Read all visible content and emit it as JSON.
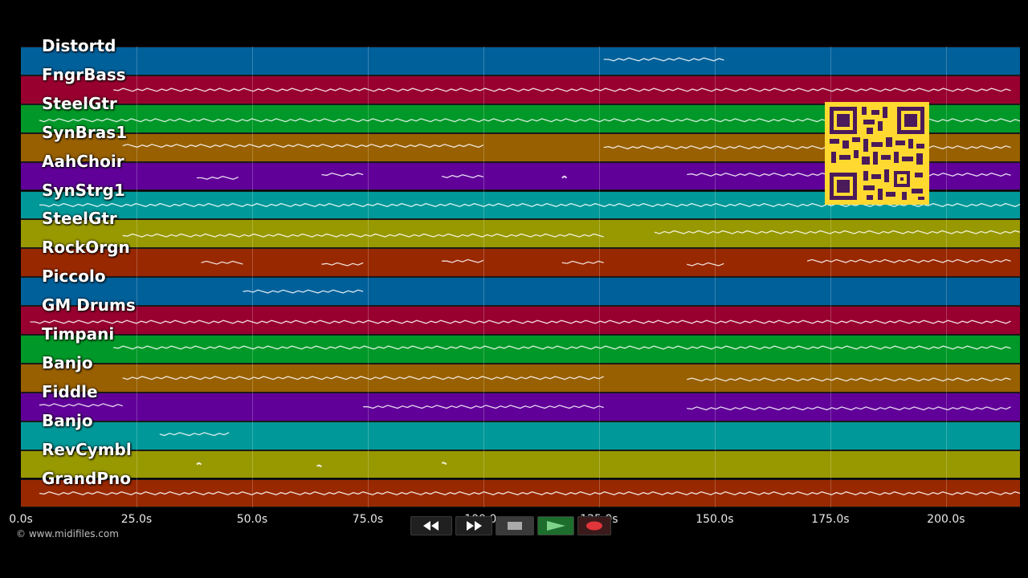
{
  "tracks": [
    {
      "name": "Distortd",
      "color": "#00609a"
    },
    {
      "name": "FngrBass",
      "color": "#980030"
    },
    {
      "name": "SteelGtr",
      "color": "#009828"
    },
    {
      "name": "SynBras1",
      "color": "#986000"
    },
    {
      "name": "AahChoir",
      "color": "#600098"
    },
    {
      "name": "SynStrg1",
      "color": "#009898"
    },
    {
      "name": "SteelGtr",
      "color": "#989800"
    },
    {
      "name": "RockOrgn",
      "color": "#982800"
    },
    {
      "name": "Piccolo",
      "color": "#00609a"
    },
    {
      "name": "GM Drums",
      "color": "#980030"
    },
    {
      "name": "Timpani",
      "color": "#009828"
    },
    {
      "name": "Banjo",
      "color": "#986000"
    },
    {
      "name": "Fiddle",
      "color": "#600098"
    },
    {
      "name": "Banjo",
      "color": "#009898"
    },
    {
      "name": "RevCymbl",
      "color": "#989800"
    },
    {
      "name": "GrandPno",
      "color": "#982800"
    }
  ],
  "timeline": {
    "ticks": [
      "0.0s",
      "25.0s",
      "50.0s",
      "75.0s",
      "100.0s",
      "125.0s",
      "150.0s",
      "175.0s",
      "200.0s"
    ],
    "tick_values": [
      0,
      25,
      50,
      75,
      100,
      125,
      150,
      175,
      200
    ],
    "max_seconds": 216
  },
  "footer": {
    "copyright": "© www.midifiles.com"
  },
  "transport": {
    "buttons": [
      {
        "name": "rewind",
        "icon": "rewind-icon"
      },
      {
        "name": "fast-forward",
        "icon": "fast-forward-icon"
      },
      {
        "name": "stop",
        "icon": "stop-icon"
      },
      {
        "name": "play",
        "icon": "play-icon"
      },
      {
        "name": "record",
        "icon": "record-icon"
      }
    ]
  },
  "notes": [
    {
      "track": 0,
      "start": 126,
      "end": 152
    },
    {
      "track": 1,
      "start": 20,
      "end": 214
    },
    {
      "track": 2,
      "start": 4,
      "end": 216
    },
    {
      "track": 3,
      "start": 22,
      "end": 100
    },
    {
      "track": 3,
      "start": 126,
      "end": 214
    },
    {
      "track": 4,
      "start": 38,
      "end": 47
    },
    {
      "track": 4,
      "start": 65,
      "end": 74
    },
    {
      "track": 4,
      "start": 91,
      "end": 100
    },
    {
      "track": 4,
      "start": 117,
      "end": 118
    },
    {
      "track": 4,
      "start": 144,
      "end": 214
    },
    {
      "track": 5,
      "start": 4,
      "end": 216
    },
    {
      "track": 6,
      "start": 22,
      "end": 126
    },
    {
      "track": 6,
      "start": 137,
      "end": 216
    },
    {
      "track": 7,
      "start": 39,
      "end": 48
    },
    {
      "track": 7,
      "start": 65,
      "end": 74
    },
    {
      "track": 7,
      "start": 91,
      "end": 100
    },
    {
      "track": 7,
      "start": 117,
      "end": 126
    },
    {
      "track": 7,
      "start": 144,
      "end": 152
    },
    {
      "track": 7,
      "start": 170,
      "end": 214
    },
    {
      "track": 8,
      "start": 48,
      "end": 74
    },
    {
      "track": 9,
      "start": 2,
      "end": 214
    },
    {
      "track": 10,
      "start": 20,
      "end": 214
    },
    {
      "track": 11,
      "start": 22,
      "end": 126
    },
    {
      "track": 11,
      "start": 144,
      "end": 214
    },
    {
      "track": 12,
      "start": 4,
      "end": 22
    },
    {
      "track": 12,
      "start": 74,
      "end": 126
    },
    {
      "track": 12,
      "start": 144,
      "end": 214
    },
    {
      "track": 13,
      "start": 30,
      "end": 45
    },
    {
      "track": 14,
      "start": 38,
      "end": 39
    },
    {
      "track": 14,
      "start": 64,
      "end": 65
    },
    {
      "track": 14,
      "start": 91,
      "end": 92
    },
    {
      "track": 15,
      "start": 4,
      "end": 216
    }
  ]
}
